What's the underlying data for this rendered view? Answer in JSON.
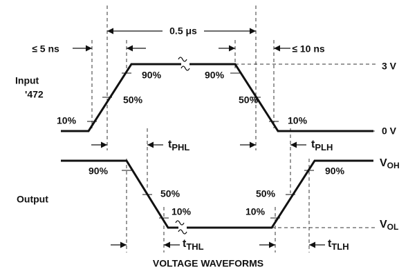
{
  "labels": {
    "input": "Input",
    "input_part": "'472",
    "output": "Output",
    "caption": "VOLTAGE WAVEFORMS",
    "rise_limit": "≤ 5 ns",
    "fall_limit": "≤ 10 ns",
    "pulse_width": "0.5 μs",
    "high_level": "3 V",
    "low_level": "0 V",
    "voh": {
      "main": "V",
      "sub": "OH"
    },
    "vol": {
      "main": "V",
      "sub": "OL"
    },
    "tphl": {
      "main": "t",
      "sub": "PHL"
    },
    "tplh": {
      "main": "t",
      "sub": "PLH"
    },
    "tthl": {
      "main": "t",
      "sub": "THL"
    },
    "ttlh": {
      "main": "t",
      "sub": "TLH"
    }
  },
  "input_levels": [
    "10%",
    "50%",
    "90%",
    "90%",
    "50%",
    "10%"
  ],
  "output_levels": [
    "90%",
    "50%",
    "10%",
    "10%",
    "50%",
    "90%"
  ]
}
